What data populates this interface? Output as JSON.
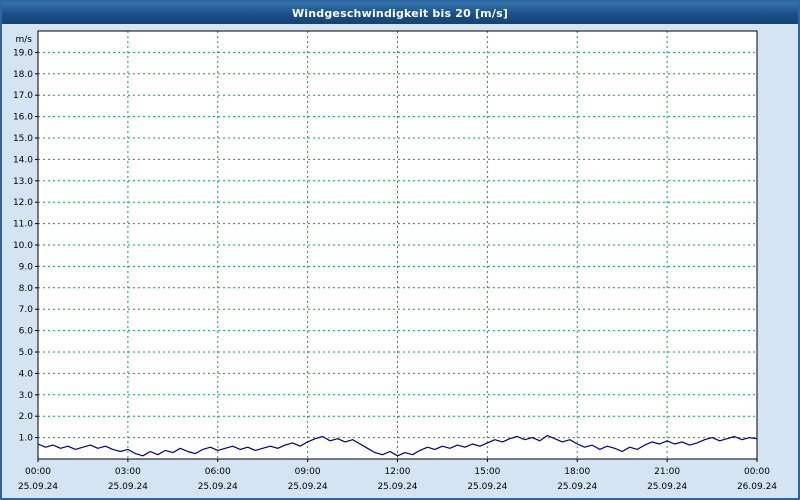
{
  "title": "Windgeschwindigkeit bis 20 [m/s]",
  "colors": {
    "titlebar": "#1b5089",
    "titlebar_text": "#ffffff",
    "window_background": "#d4e4f2",
    "plot_background": "#ffffff",
    "plot_border": "#000000",
    "grid_color": "#00a040",
    "line_color": "#00007f",
    "tick_text_color": "#000000"
  },
  "chart_data": {
    "type": "line",
    "title": "Windgeschwindigkeit bis 20 [m/s]",
    "y_unit_label": "m/s",
    "xlabel": "",
    "ylabel": "m/s",
    "ylim": [
      0,
      20
    ],
    "y_tick_step": 1,
    "y_tick_labels": [
      "1.0",
      "2.0",
      "3.0",
      "4.0",
      "5.0",
      "6.0",
      "7.0",
      "8.0",
      "9.0",
      "10.0",
      "11.0",
      "12.0",
      "13.0",
      "14.0",
      "15.0",
      "16.0",
      "17.0",
      "18.0",
      "19.0"
    ],
    "x_range_hours": [
      0,
      24
    ],
    "x_ticks": [
      {
        "hour": 0,
        "time": "00:00",
        "date": "25.09.24"
      },
      {
        "hour": 3,
        "time": "03:00",
        "date": "25.09.24"
      },
      {
        "hour": 6,
        "time": "06:00",
        "date": "25.09.24"
      },
      {
        "hour": 9,
        "time": "09:00",
        "date": "25.09.24"
      },
      {
        "hour": 12,
        "time": "12:00",
        "date": "25.09.24"
      },
      {
        "hour": 15,
        "time": "15:00",
        "date": "25.09.24"
      },
      {
        "hour": 18,
        "time": "18:00",
        "date": "25.09.24"
      },
      {
        "hour": 21,
        "time": "21:00",
        "date": "25.09.24"
      },
      {
        "hour": 24,
        "time": "00:00",
        "date": "26.09.24"
      }
    ],
    "grid": {
      "show": true,
      "style": "dashed",
      "color": "#00a040"
    },
    "legend": "none",
    "line_color": "#00007f",
    "series": [
      {
        "x_start_hours": 0,
        "x_step_hours": 0.25,
        "values": [
          0.7,
          0.55,
          0.65,
          0.5,
          0.6,
          0.45,
          0.55,
          0.65,
          0.5,
          0.6,
          0.45,
          0.35,
          0.45,
          0.25,
          0.15,
          0.35,
          0.2,
          0.4,
          0.3,
          0.5,
          0.35,
          0.25,
          0.45,
          0.55,
          0.4,
          0.5,
          0.6,
          0.45,
          0.55,
          0.4,
          0.5,
          0.6,
          0.5,
          0.65,
          0.75,
          0.6,
          0.8,
          0.95,
          1.05,
          0.85,
          0.95,
          0.8,
          0.9,
          0.7,
          0.5,
          0.3,
          0.2,
          0.35,
          0.15,
          0.3,
          0.2,
          0.4,
          0.55,
          0.45,
          0.6,
          0.5,
          0.65,
          0.55,
          0.7,
          0.6,
          0.75,
          0.9,
          0.8,
          0.95,
          1.05,
          0.9,
          1.0,
          0.85,
          1.1,
          0.95,
          0.8,
          0.9,
          0.7,
          0.55,
          0.65,
          0.45,
          0.6,
          0.5,
          0.35,
          0.55,
          0.45,
          0.65,
          0.8,
          0.7,
          0.85,
          0.7,
          0.8,
          0.65,
          0.75,
          0.9,
          1.0,
          0.85,
          0.95,
          1.05,
          0.9,
          1.0,
          0.95
        ]
      }
    ]
  }
}
